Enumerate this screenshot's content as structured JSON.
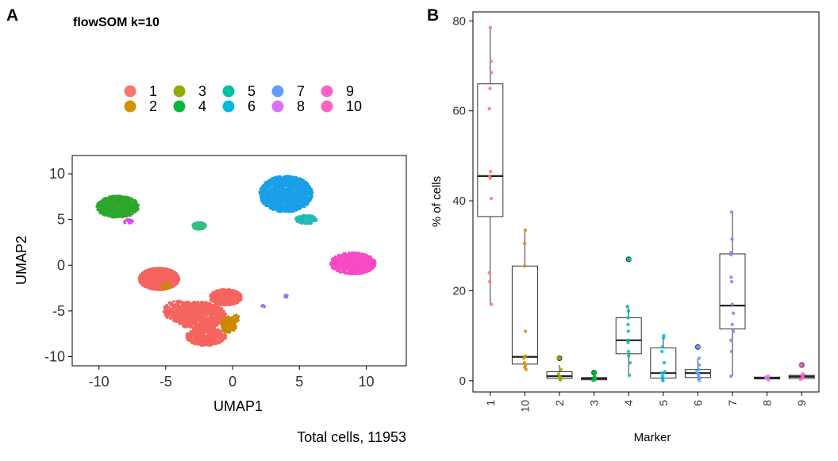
{
  "panel_a": {
    "letter": "A",
    "title": "flowSOM k=10",
    "caption": "Total cells, 11953"
  },
  "panel_b": {
    "letter": "B"
  },
  "chart_data": [
    {
      "type": "scatter",
      "xlabel": "UMAP1",
      "ylabel": "UMAP2",
      "xlim": [
        -12,
        13
      ],
      "ylim": [
        -11,
        12
      ],
      "xticks": [
        -10,
        -5,
        0,
        5,
        10
      ],
      "yticks": [
        -10,
        -5,
        0,
        5,
        10
      ],
      "grid": false,
      "legend_placement": "top",
      "legend": [
        {
          "label": "1",
          "color": "#F8766D"
        },
        {
          "label": "2",
          "color": "#D39200"
        },
        {
          "label": "3",
          "color": "#93AA00"
        },
        {
          "label": "4",
          "color": "#00BA38"
        },
        {
          "label": "5",
          "color": "#00C19F"
        },
        {
          "label": "6",
          "color": "#00B9E3"
        },
        {
          "label": "7",
          "color": "#619CFF"
        },
        {
          "label": "8",
          "color": "#DB72FB"
        },
        {
          "label": "9",
          "color": "#FF61C3"
        },
        {
          "label": "10",
          "color": "#FF61C3"
        }
      ],
      "clusters": [
        {
          "name": "1",
          "color": "#F5645E",
          "regions": [
            [
              -5.5,
              -1.5,
              1.5,
              1.2,
              2600
            ],
            [
              -0.5,
              -3.5,
              1.2,
              0.9,
              600
            ],
            [
              -2.5,
              -5.5,
              2.0,
              1.5,
              900
            ],
            [
              -2.0,
              -7.8,
              1.5,
              1.0,
              500
            ],
            [
              -4.0,
              -5.0,
              1.2,
              1.2,
              300
            ]
          ]
        },
        {
          "name": "2",
          "color": "#CC8800",
          "regions": [
            [
              -0.3,
              -6.5,
              0.6,
              0.9,
              150
            ],
            [
              -5.0,
              -2.3,
              0.3,
              0.3,
              30
            ],
            [
              0.2,
              -5.8,
              0.3,
              0.4,
              30
            ]
          ]
        },
        {
          "name": "3",
          "color": "#93AA00",
          "regions": [
            [
              -8.3,
              6.1,
              0.7,
              0.5,
              40
            ]
          ]
        },
        {
          "name": "4",
          "color": "#2DA82D",
          "regions": [
            [
              -8.6,
              6.4,
              1.6,
              1.2,
              750
            ]
          ]
        },
        {
          "name": "5",
          "color": "#2FBF80",
          "regions": [
            [
              -2.5,
              4.3,
              0.5,
              0.4,
              150
            ]
          ]
        },
        {
          "name": "6",
          "color": "#1FBAB8",
          "regions": [
            [
              5.5,
              5.0,
              0.8,
              0.5,
              150
            ]
          ]
        },
        {
          "name": "7",
          "color": "#1A9FE8",
          "regions": [
            [
              4.0,
              7.8,
              2.0,
              2.0,
              1500
            ]
          ]
        },
        {
          "name": "8",
          "color": "#8A7FF5",
          "regions": [
            [
              4.0,
              -3.4,
              0.15,
              0.15,
              15
            ],
            [
              2.3,
              -4.5,
              0.15,
              0.15,
              8
            ]
          ]
        },
        {
          "name": "9",
          "color": "#DD4CEE",
          "regions": [
            [
              -7.8,
              4.8,
              0.35,
              0.25,
              20
            ]
          ]
        },
        {
          "name": "10",
          "color": "#F74AC3",
          "regions": [
            [
              9.0,
              0.2,
              1.7,
              1.2,
              900
            ]
          ]
        }
      ]
    },
    {
      "type": "box",
      "xlabel": "Marker",
      "ylabel": "% of cells",
      "ylim": [
        -2.5,
        82
      ],
      "yticks": [
        0,
        20,
        40,
        60,
        80
      ],
      "grid": false,
      "categories": [
        "1",
        "10",
        "2",
        "3",
        "4",
        "5",
        "6",
        "7",
        "8",
        "9"
      ],
      "colors": [
        "#F8766D",
        "#D39200",
        "#93AA00",
        "#00BA38",
        "#00C19F",
        "#00B9E3",
        "#619CFF",
        "#8A7FF5",
        "#DB72FB",
        "#FF61C3"
      ],
      "boxes": [
        {
          "q1": 36.5,
          "median": 45.5,
          "q3": 66.0,
          "whisker_low": 17.0,
          "whisker_high": 78.5,
          "outliers": []
        },
        {
          "q1": 3.7,
          "median": 5.3,
          "q3": 25.5,
          "whisker_low": 2.5,
          "whisker_high": 33.5,
          "outliers": []
        },
        {
          "q1": 0.5,
          "median": 1.0,
          "q3": 2.0,
          "whisker_low": 0.2,
          "whisker_high": 3.5,
          "outliers": [
            5.0
          ]
        },
        {
          "q1": 0.2,
          "median": 0.5,
          "q3": 0.7,
          "whisker_low": 0.0,
          "whisker_high": 1.0,
          "outliers": [
            1.8
          ]
        },
        {
          "q1": 6.0,
          "median": 9.0,
          "q3": 14.0,
          "whisker_low": 1.2,
          "whisker_high": 16.5,
          "outliers": [
            27.0
          ]
        },
        {
          "q1": 0.6,
          "median": 1.7,
          "q3": 7.3,
          "whisker_low": 0.0,
          "whisker_high": 10.0,
          "outliers": []
        },
        {
          "q1": 0.7,
          "median": 1.7,
          "q3": 2.5,
          "whisker_low": 0.1,
          "whisker_high": 5.0,
          "outliers": [
            7.5
          ]
        },
        {
          "q1": 11.5,
          "median": 16.7,
          "q3": 28.2,
          "whisker_low": 1.0,
          "whisker_high": 37.5,
          "outliers": []
        },
        {
          "q1": 0.4,
          "median": 0.6,
          "q3": 0.8,
          "whisker_low": 0.2,
          "whisker_high": 1.0,
          "outliers": []
        },
        {
          "q1": 0.5,
          "median": 0.9,
          "q3": 1.2,
          "whisker_low": 0.2,
          "whisker_high": 1.5,
          "outliers": [
            3.5
          ]
        }
      ],
      "points": [
        [
          78.5,
          71.0,
          68.5,
          65.0,
          60.5,
          46.5,
          45.5,
          45.0,
          40.5,
          24.0,
          22.0,
          17.0
        ],
        [
          33.5,
          30.5,
          25.5,
          11.0,
          5.5,
          5.0,
          4.0,
          3.5,
          3.0,
          2.5
        ],
        [
          5.0,
          2.5,
          1.5,
          1.0,
          0.8,
          0.5,
          0.3,
          0.2
        ],
        [
          1.8,
          1.0,
          0.7,
          0.5,
          0.3,
          0.2,
          0.1
        ],
        [
          27.0,
          16.5,
          15.5,
          14.0,
          12.5,
          11.0,
          9.0,
          8.5,
          6.5,
          5.5,
          4.0,
          1.2
        ],
        [
          10.0,
          9.5,
          7.5,
          6.5,
          4.0,
          2.0,
          1.7,
          1.0,
          0.5,
          0.0
        ],
        [
          7.5,
          5.0,
          3.5,
          2.5,
          2.0,
          1.5,
          1.0,
          0.5,
          0.1
        ],
        [
          37.5,
          31.5,
          28.5,
          28.0,
          23.0,
          22.0,
          17.0,
          15.0,
          12.5,
          11.0,
          9.0,
          6.5,
          1.0
        ],
        [
          1.0,
          0.8,
          0.6,
          0.4,
          0.2
        ],
        [
          3.5,
          1.5,
          1.2,
          0.9,
          0.6,
          0.3
        ]
      ]
    }
  ]
}
